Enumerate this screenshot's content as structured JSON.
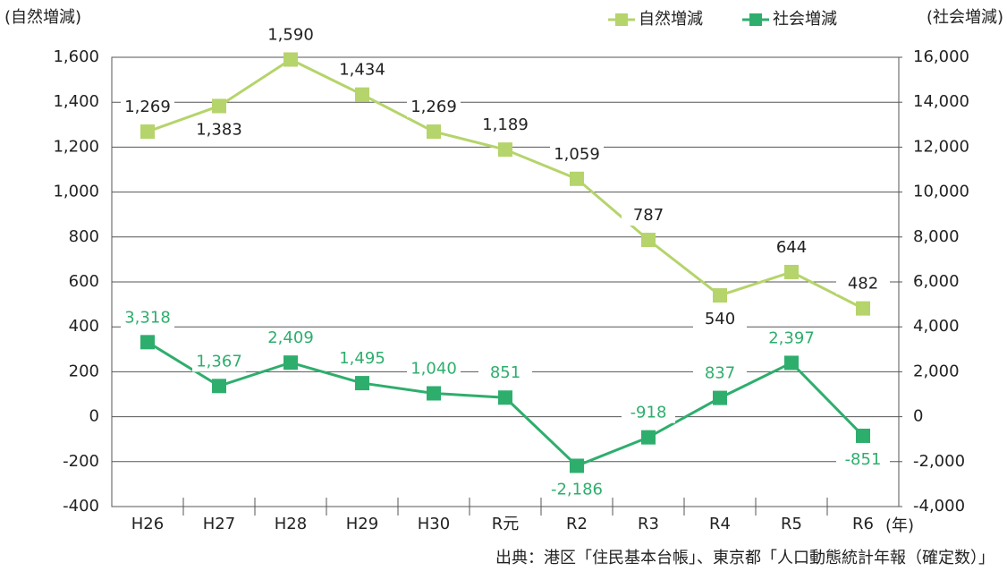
{
  "chart_data": {
    "type": "line",
    "categories": [
      "H26",
      "H27",
      "H28",
      "H29",
      "H30",
      "R元",
      "R2",
      "R3",
      "R4",
      "R5",
      "R6"
    ],
    "series": [
      {
        "name": "自然増減",
        "color": "#b5d46b",
        "values": [
          1269,
          1383,
          1590,
          1434,
          1269,
          1189,
          1059,
          787,
          540,
          644,
          482
        ],
        "value_labels": [
          "1,269",
          "1,383",
          "1,590",
          "1,434",
          "1,269",
          "1,189",
          "1,059",
          "787",
          "540",
          "644",
          "482"
        ]
      },
      {
        "name": "社会増減",
        "color": "#2eae6d",
        "axis": "y2",
        "values": [
          3318,
          1367,
          2409,
          1495,
          1040,
          851,
          -2186,
          -918,
          837,
          2397,
          -851
        ],
        "value_labels": [
          "3,318",
          "1,367",
          "2,409",
          "1,495",
          "1,040",
          "851",
          "-2,186",
          "-918",
          "837",
          "2,397",
          "-851"
        ]
      }
    ],
    "ylabel": "(自然増減)",
    "y2label": "(社会増減)",
    "xlabel": "(年)",
    "ylim": [
      -400,
      1600
    ],
    "yticks": [
      -400,
      -200,
      0,
      200,
      400,
      600,
      800,
      {
        "value": 1000,
        "label": "1,000"
      },
      {
        "value": 1200,
        "label": "1,200"
      },
      {
        "value": 1400,
        "label": "1,400"
      },
      {
        "value": 1600,
        "label": "1,600"
      }
    ],
    "y2lim": [
      -4000,
      16000
    ],
    "y2ticks": [
      {
        "value": -4000,
        "label": "-4,000"
      },
      {
        "value": -2000,
        "label": "-2,000"
      },
      0,
      {
        "value": 2000,
        "label": "2,000"
      },
      {
        "value": 4000,
        "label": "4,000"
      },
      {
        "value": 6000,
        "label": "6,000"
      },
      {
        "value": 8000,
        "label": "8,000"
      },
      {
        "value": 10000,
        "label": "10,000"
      },
      {
        "value": 12000,
        "label": "12,000"
      },
      {
        "value": 14000,
        "label": "14,000"
      },
      {
        "value": 16000,
        "label": "16,000"
      }
    ],
    "grid": true,
    "legend": "top-right",
    "source": "出典：港区「住民基本台帳」、東京都「人口動態統計年報（確定数）」"
  }
}
